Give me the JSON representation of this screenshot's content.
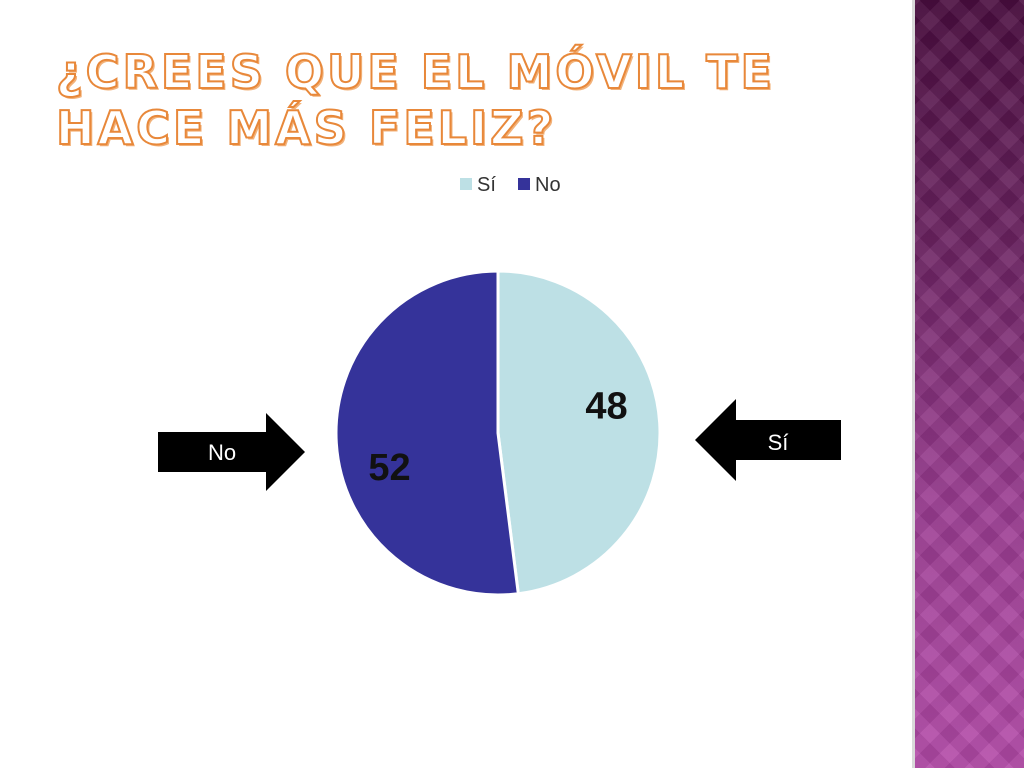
{
  "slide": {
    "title": "¿Crees que el móvil te hace más feliz?"
  },
  "colors": {
    "si": "#bde0e5",
    "no": "#35339a",
    "arrow": "#000000",
    "panel": "#7a2a70"
  },
  "arrows": {
    "left_label": "No",
    "right_label": "Sí"
  },
  "chart_data": {
    "type": "pie",
    "title": "",
    "categories": [
      "Sí",
      "No"
    ],
    "values": [
      48,
      52
    ],
    "legend": {
      "position": "top",
      "entries": [
        "Sí",
        "No"
      ]
    },
    "data_labels": [
      "48",
      "52"
    ]
  }
}
